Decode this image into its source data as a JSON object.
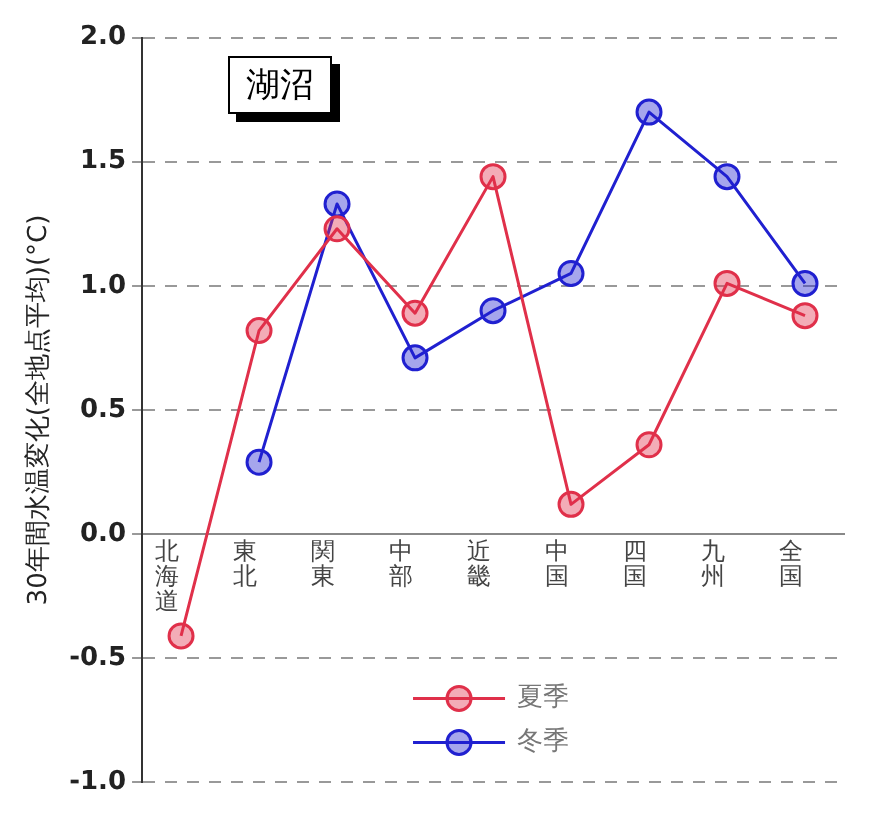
{
  "chart_data": {
    "type": "line",
    "title": "湖沼",
    "ylabel": "30年間水温変化(全地点平均)(°C)",
    "categories": [
      "北海道",
      "東北",
      "関東",
      "中部",
      "近畿",
      "中国",
      "四国",
      "九州",
      "全国"
    ],
    "series": [
      {
        "name": "夏季",
        "color": "#e0304a",
        "values": [
          -0.41,
          0.82,
          1.23,
          0.89,
          1.44,
          0.12,
          0.36,
          1.01,
          0.88
        ]
      },
      {
        "name": "冬季",
        "color": "#2020d0",
        "values": [
          null,
          0.29,
          1.33,
          0.71,
          0.9,
          1.05,
          1.7,
          1.44,
          1.01
        ]
      }
    ],
    "ylim": [
      -1.0,
      2.0
    ],
    "yticks": [
      {
        "value": -1,
        "label": "-1.0"
      },
      {
        "value": -0.5,
        "label": "-0.5"
      },
      {
        "value": 0,
        "label": "0.0"
      },
      {
        "value": 0.5,
        "label": "0.5"
      },
      {
        "value": 1,
        "label": "1.0"
      },
      {
        "value": 1.5,
        "label": "1.5"
      },
      {
        "value": 2,
        "label": "2.0"
      }
    ],
    "grid": "y",
    "legend": "bottom",
    "marker": "circle",
    "line_style": "solid"
  }
}
